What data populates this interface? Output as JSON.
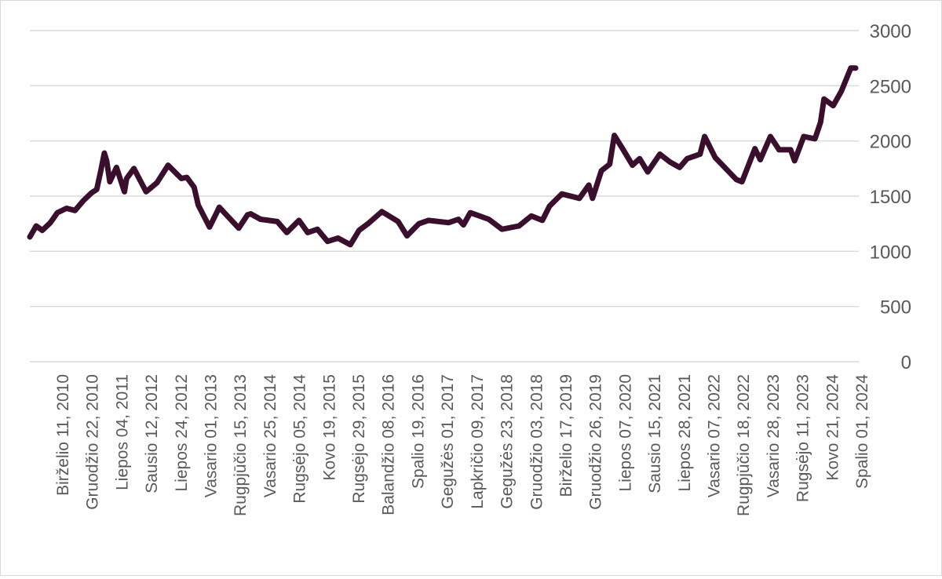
{
  "chart_data": {
    "type": "line",
    "title": "",
    "xlabel": "",
    "ylabel": "",
    "ylim": [
      0,
      3000
    ],
    "yticks": [
      "0",
      "500",
      "1000",
      "1500",
      "2000",
      "2500",
      "3000"
    ],
    "y_axis_side": "right",
    "grid": true,
    "legend": "none",
    "colors": {
      "line": "#3a0f2e",
      "grid": "#d9d9d9",
      "text": "#595959"
    },
    "xtick_labels": [
      "Birželio 11, 2010",
      "Gruodžio 22, 2010",
      "Liepos 04, 2011",
      "Sausio 12, 2012",
      "Liepos 24, 2012",
      "Vasario 01, 2013",
      "Rugpjūčio 15, 2013",
      "Vasario 25, 2014",
      "Rugsėjo 05, 2014",
      "Kovo 19, 2015",
      "Rugsėjo 29, 2015",
      "Balandžio 08, 2016",
      "Spalio 19, 2016",
      "Gegužės 01, 2017",
      "Lapkričio 09, 2017",
      "Gegužės 23, 2018",
      "Gruodžio 03, 2018",
      "Birželio 17, 2019",
      "Gruodžio 26, 2019",
      "Liepos 07, 2020",
      "Sausio 15, 2021",
      "Liepos 28, 2021",
      "Vasario 07, 2022",
      "Rugpjūčio 18, 2022",
      "Vasario 28, 2023",
      "Rugsėjo 11, 2023",
      "Kovo 21, 2024",
      "Spalio 01, 2024"
    ],
    "series": [
      {
        "x": [
          "2010-05-01",
          "2010-06-11",
          "2010-07-20",
          "2010-09-10",
          "2010-10-25",
          "2010-12-22",
          "2011-02-15",
          "2011-04-10",
          "2011-06-01",
          "2011-07-04",
          "2011-08-01",
          "2011-08-22",
          "2011-09-06",
          "2011-09-26",
          "2011-11-08",
          "2011-12-29",
          "2012-01-12",
          "2012-02-28",
          "2012-05-16",
          "2012-07-24",
          "2012-10-04",
          "2012-12-28",
          "2013-02-01",
          "2013-03-20",
          "2013-04-15",
          "2013-06-27",
          "2013-08-15",
          "2013-08-28",
          "2013-12-31",
          "2014-02-25",
          "2014-03-17",
          "2014-05-20",
          "2014-09-05",
          "2014-11-05",
          "2015-01-22",
          "2015-03-19",
          "2015-05-20",
          "2015-07-24",
          "2015-09-29",
          "2015-12-17",
          "2016-02-11",
          "2016-04-08",
          "2016-07-06",
          "2016-10-19",
          "2016-12-15",
          "2017-03-01",
          "2017-05-01",
          "2017-09-08",
          "2017-11-09",
          "2017-12-12",
          "2018-01-25",
          "2018-05-23",
          "2018-08-16",
          "2018-12-03",
          "2019-02-20",
          "2019-05-02",
          "2019-06-17",
          "2019-09-04",
          "2019-12-26",
          "2020-02-24",
          "2020-03-19",
          "2020-05-15",
          "2020-07-07",
          "2020-08-06",
          "2020-09-28",
          "2020-11-30",
          "2021-01-15",
          "2021-03-08",
          "2021-05-25",
          "2021-07-28",
          "2021-09-29",
          "2021-11-16",
          "2022-02-07",
          "2022-03-08",
          "2022-05-15",
          "2022-08-18",
          "2022-09-28",
          "2022-11-03",
          "2023-01-25",
          "2023-02-28",
          "2023-05-04",
          "2023-06-29",
          "2023-09-11",
          "2023-10-06",
          "2023-12-04",
          "2024-02-14",
          "2024-03-21",
          "2024-04-12",
          "2024-06-10",
          "2024-08-01",
          "2024-10-01",
          "2024-11-01"
        ],
        "values": [
          1130,
          1230,
          1190,
          1260,
          1350,
          1390,
          1370,
          1460,
          1530,
          1560,
          1740,
          1890,
          1820,
          1630,
          1760,
          1540,
          1660,
          1750,
          1540,
          1620,
          1780,
          1660,
          1670,
          1580,
          1420,
          1220,
          1360,
          1400,
          1210,
          1330,
          1340,
          1290,
          1270,
          1170,
          1280,
          1170,
          1200,
          1090,
          1120,
          1060,
          1190,
          1250,
          1360,
          1270,
          1140,
          1250,
          1280,
          1260,
          1290,
          1240,
          1350,
          1290,
          1200,
          1230,
          1320,
          1280,
          1410,
          1520,
          1480,
          1600,
          1480,
          1730,
          1790,
          2050,
          1930,
          1780,
          1840,
          1720,
          1880,
          1810,
          1760,
          1840,
          1880,
          2040,
          1850,
          1710,
          1650,
          1630,
          1930,
          1830,
          2040,
          1920,
          1920,
          1820,
          2040,
          2020,
          2170,
          2380,
          2320,
          2450,
          2660,
          2660
        ]
      }
    ]
  }
}
